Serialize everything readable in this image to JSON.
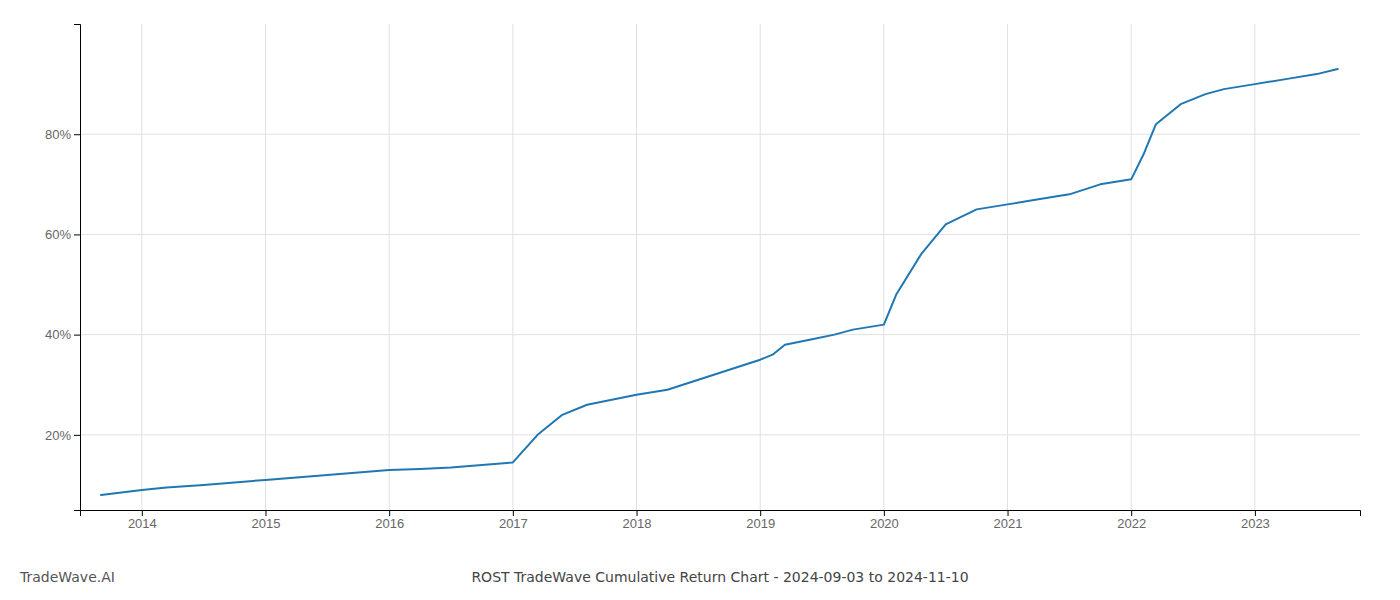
{
  "chart_data": {
    "type": "line",
    "title": "ROST TradeWave Cumulative Return Chart - 2024-09-03 to 2024-11-10",
    "annotations": [
      "TradeWave.AI"
    ],
    "x": [
      2013.67,
      2014.0,
      2014.2,
      2014.5,
      2014.75,
      2015.0,
      2015.25,
      2015.5,
      2015.75,
      2016.0,
      2016.25,
      2016.5,
      2016.75,
      2017.0,
      2017.2,
      2017.4,
      2017.6,
      2017.8,
      2018.0,
      2018.25,
      2018.5,
      2018.75,
      2019.0,
      2019.1,
      2019.2,
      2019.4,
      2019.6,
      2019.75,
      2020.0,
      2020.1,
      2020.3,
      2020.5,
      2020.75,
      2021.0,
      2021.25,
      2021.5,
      2021.75,
      2022.0,
      2022.1,
      2022.2,
      2022.4,
      2022.6,
      2022.75,
      2023.0,
      2023.25,
      2023.5,
      2023.67
    ],
    "values": [
      8,
      9,
      9.5,
      10,
      10.5,
      11,
      11.5,
      12,
      12.5,
      13,
      13.2,
      13.5,
      14,
      14.5,
      20,
      24,
      26,
      27,
      28,
      29,
      31,
      33,
      35,
      36,
      38,
      39,
      40,
      41,
      42,
      48,
      56,
      62,
      65,
      66,
      67,
      68,
      70,
      71,
      76,
      82,
      86,
      88,
      89,
      90,
      91,
      92,
      93
    ],
    "xlim": [
      2013.5,
      2023.85
    ],
    "ylim": [
      5,
      102
    ],
    "xticks": [
      2014,
      2015,
      2016,
      2017,
      2018,
      2019,
      2020,
      2021,
      2022,
      2023
    ],
    "yticks": [
      {
        "value": 20,
        "label": "20%"
      },
      {
        "value": 40,
        "label": "40%"
      },
      {
        "value": 60,
        "label": "60%"
      },
      {
        "value": 80,
        "label": "80%"
      }
    ],
    "grid": true
  }
}
